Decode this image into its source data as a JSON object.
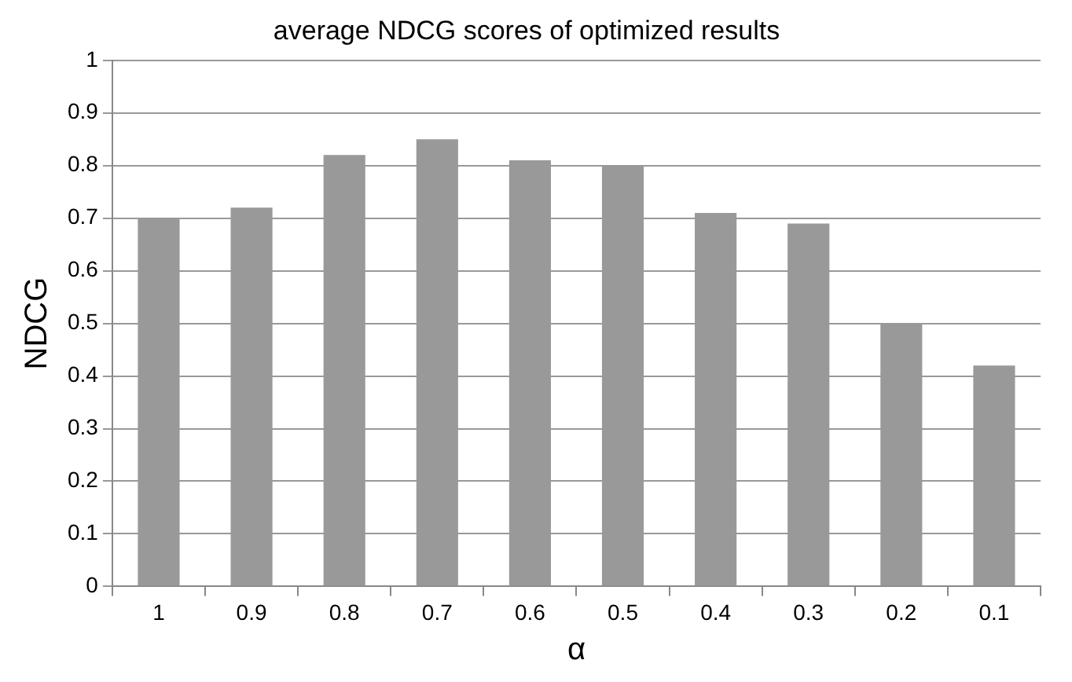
{
  "chart_data": {
    "type": "bar",
    "title": "average NDCG scores of optimized results",
    "xlabel": "α",
    "ylabel": "NDCG",
    "categories": [
      "1",
      "0.9",
      "0.8",
      "0.7",
      "0.6",
      "0.5",
      "0.4",
      "0.3",
      "0.2",
      "0.1"
    ],
    "values": [
      0.7,
      0.72,
      0.82,
      0.85,
      0.81,
      0.8,
      0.71,
      0.69,
      0.5,
      0.42
    ],
    "color": "#999999",
    "ylim": [
      0,
      1
    ],
    "yticks": [
      0,
      0.1,
      0.2,
      0.3,
      0.4,
      0.5,
      0.6,
      0.7,
      0.8,
      0.9,
      1
    ],
    "grid": "y",
    "legend": false
  }
}
